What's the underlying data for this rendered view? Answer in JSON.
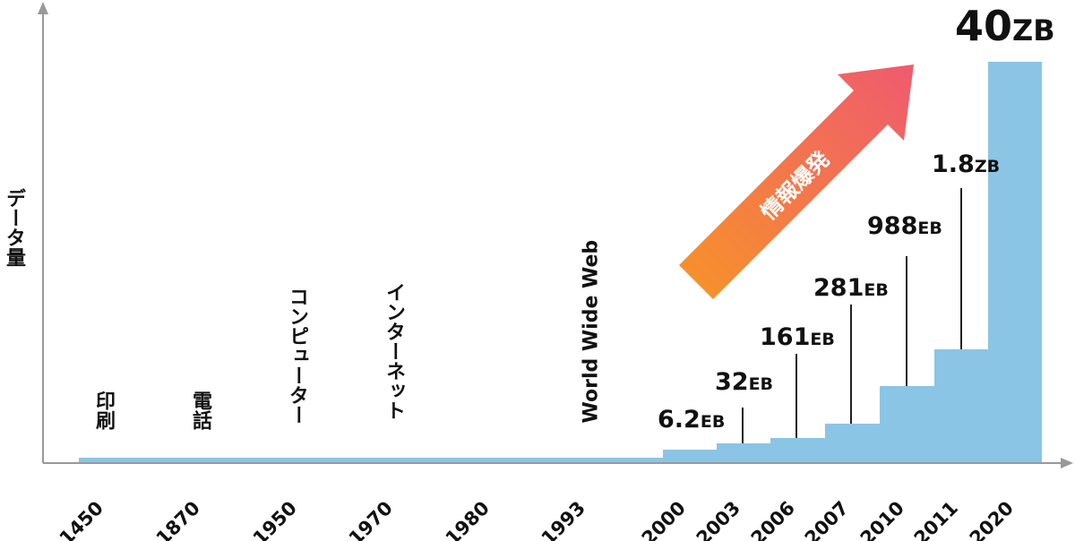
{
  "y_axis_label": "データ量",
  "arrow_label": "情報爆発",
  "years": [
    "1450",
    "1870",
    "1950",
    "1970",
    "1980",
    "1993",
    "2000",
    "2003",
    "2006",
    "2007",
    "2010",
    "2011",
    "2020"
  ],
  "milestones": [
    "印刷",
    "電話",
    "コンピューター",
    "インターネット",
    "World Wide Web"
  ],
  "volumes": [
    {
      "number": "6.2",
      "unit": "EB"
    },
    {
      "number": "32",
      "unit": "EB"
    },
    {
      "number": "161",
      "unit": "EB"
    },
    {
      "number": "281",
      "unit": "EB"
    },
    {
      "number": "988",
      "unit": "EB"
    },
    {
      "number": "1.8",
      "unit": "ZB"
    },
    {
      "number": "40",
      "unit": "ZB"
    }
  ]
}
